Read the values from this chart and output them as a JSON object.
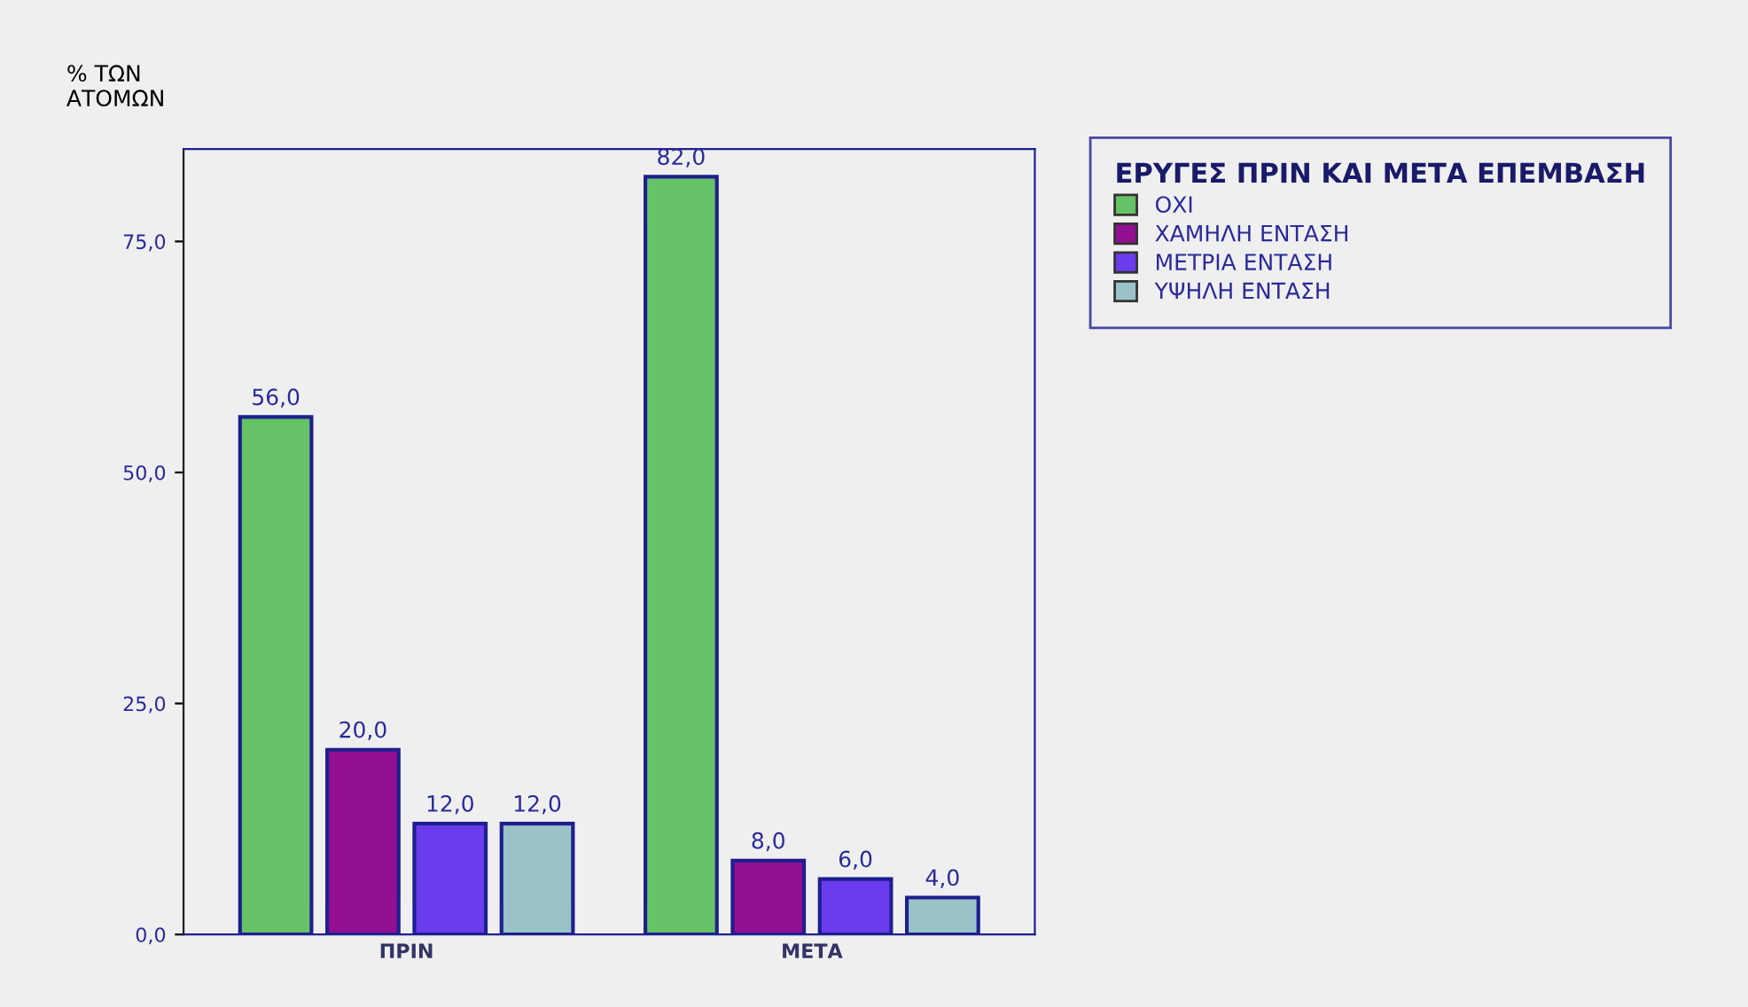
{
  "chart_data": {
    "type": "bar",
    "ylabel": "% ΤΩΝ\nΑΤΟΜΩΝ",
    "legend_title": "ΕΡΥΓΕΣ ΠΡΙΝ ΚΑΙ ΜΕΤΑ ΕΠΕΜΒΑΣΗ",
    "categories": [
      "ΠΡΙΝ",
      "ΜΕΤΑ"
    ],
    "series": [
      {
        "name": "ΟΧΙ",
        "color": "#66c266",
        "values": [
          56,
          82
        ],
        "value_labels": [
          "56,0",
          "82,0"
        ]
      },
      {
        "name": "ΧΑΜΗΛΗ ΕΝΤΑΣΗ",
        "color": "#920f92",
        "values": [
          20,
          8
        ],
        "value_labels": [
          "20,0",
          "8,0"
        ]
      },
      {
        "name": "ΜΕΤΡΙΑ ΕΝΤΑΣΗ",
        "color": "#6a3cee",
        "values": [
          12,
          6
        ],
        "value_labels": [
          "12,0",
          "6,0"
        ]
      },
      {
        "name": "ΥΨΗΛΗ ΕΝΤΑΣΗ",
        "color": "#99c3c6",
        "values": [
          12,
          4
        ],
        "value_labels": [
          "12,0",
          "4,0"
        ]
      }
    ],
    "ylim": [
      0,
      85
    ],
    "yticks": [
      {
        "value": 0,
        "label": "0,0"
      },
      {
        "value": 25,
        "label": "25,0"
      },
      {
        "value": 50,
        "label": "50,0"
      },
      {
        "value": 75,
        "label": "75,0"
      }
    ],
    "grid": false,
    "legend": "top right"
  }
}
